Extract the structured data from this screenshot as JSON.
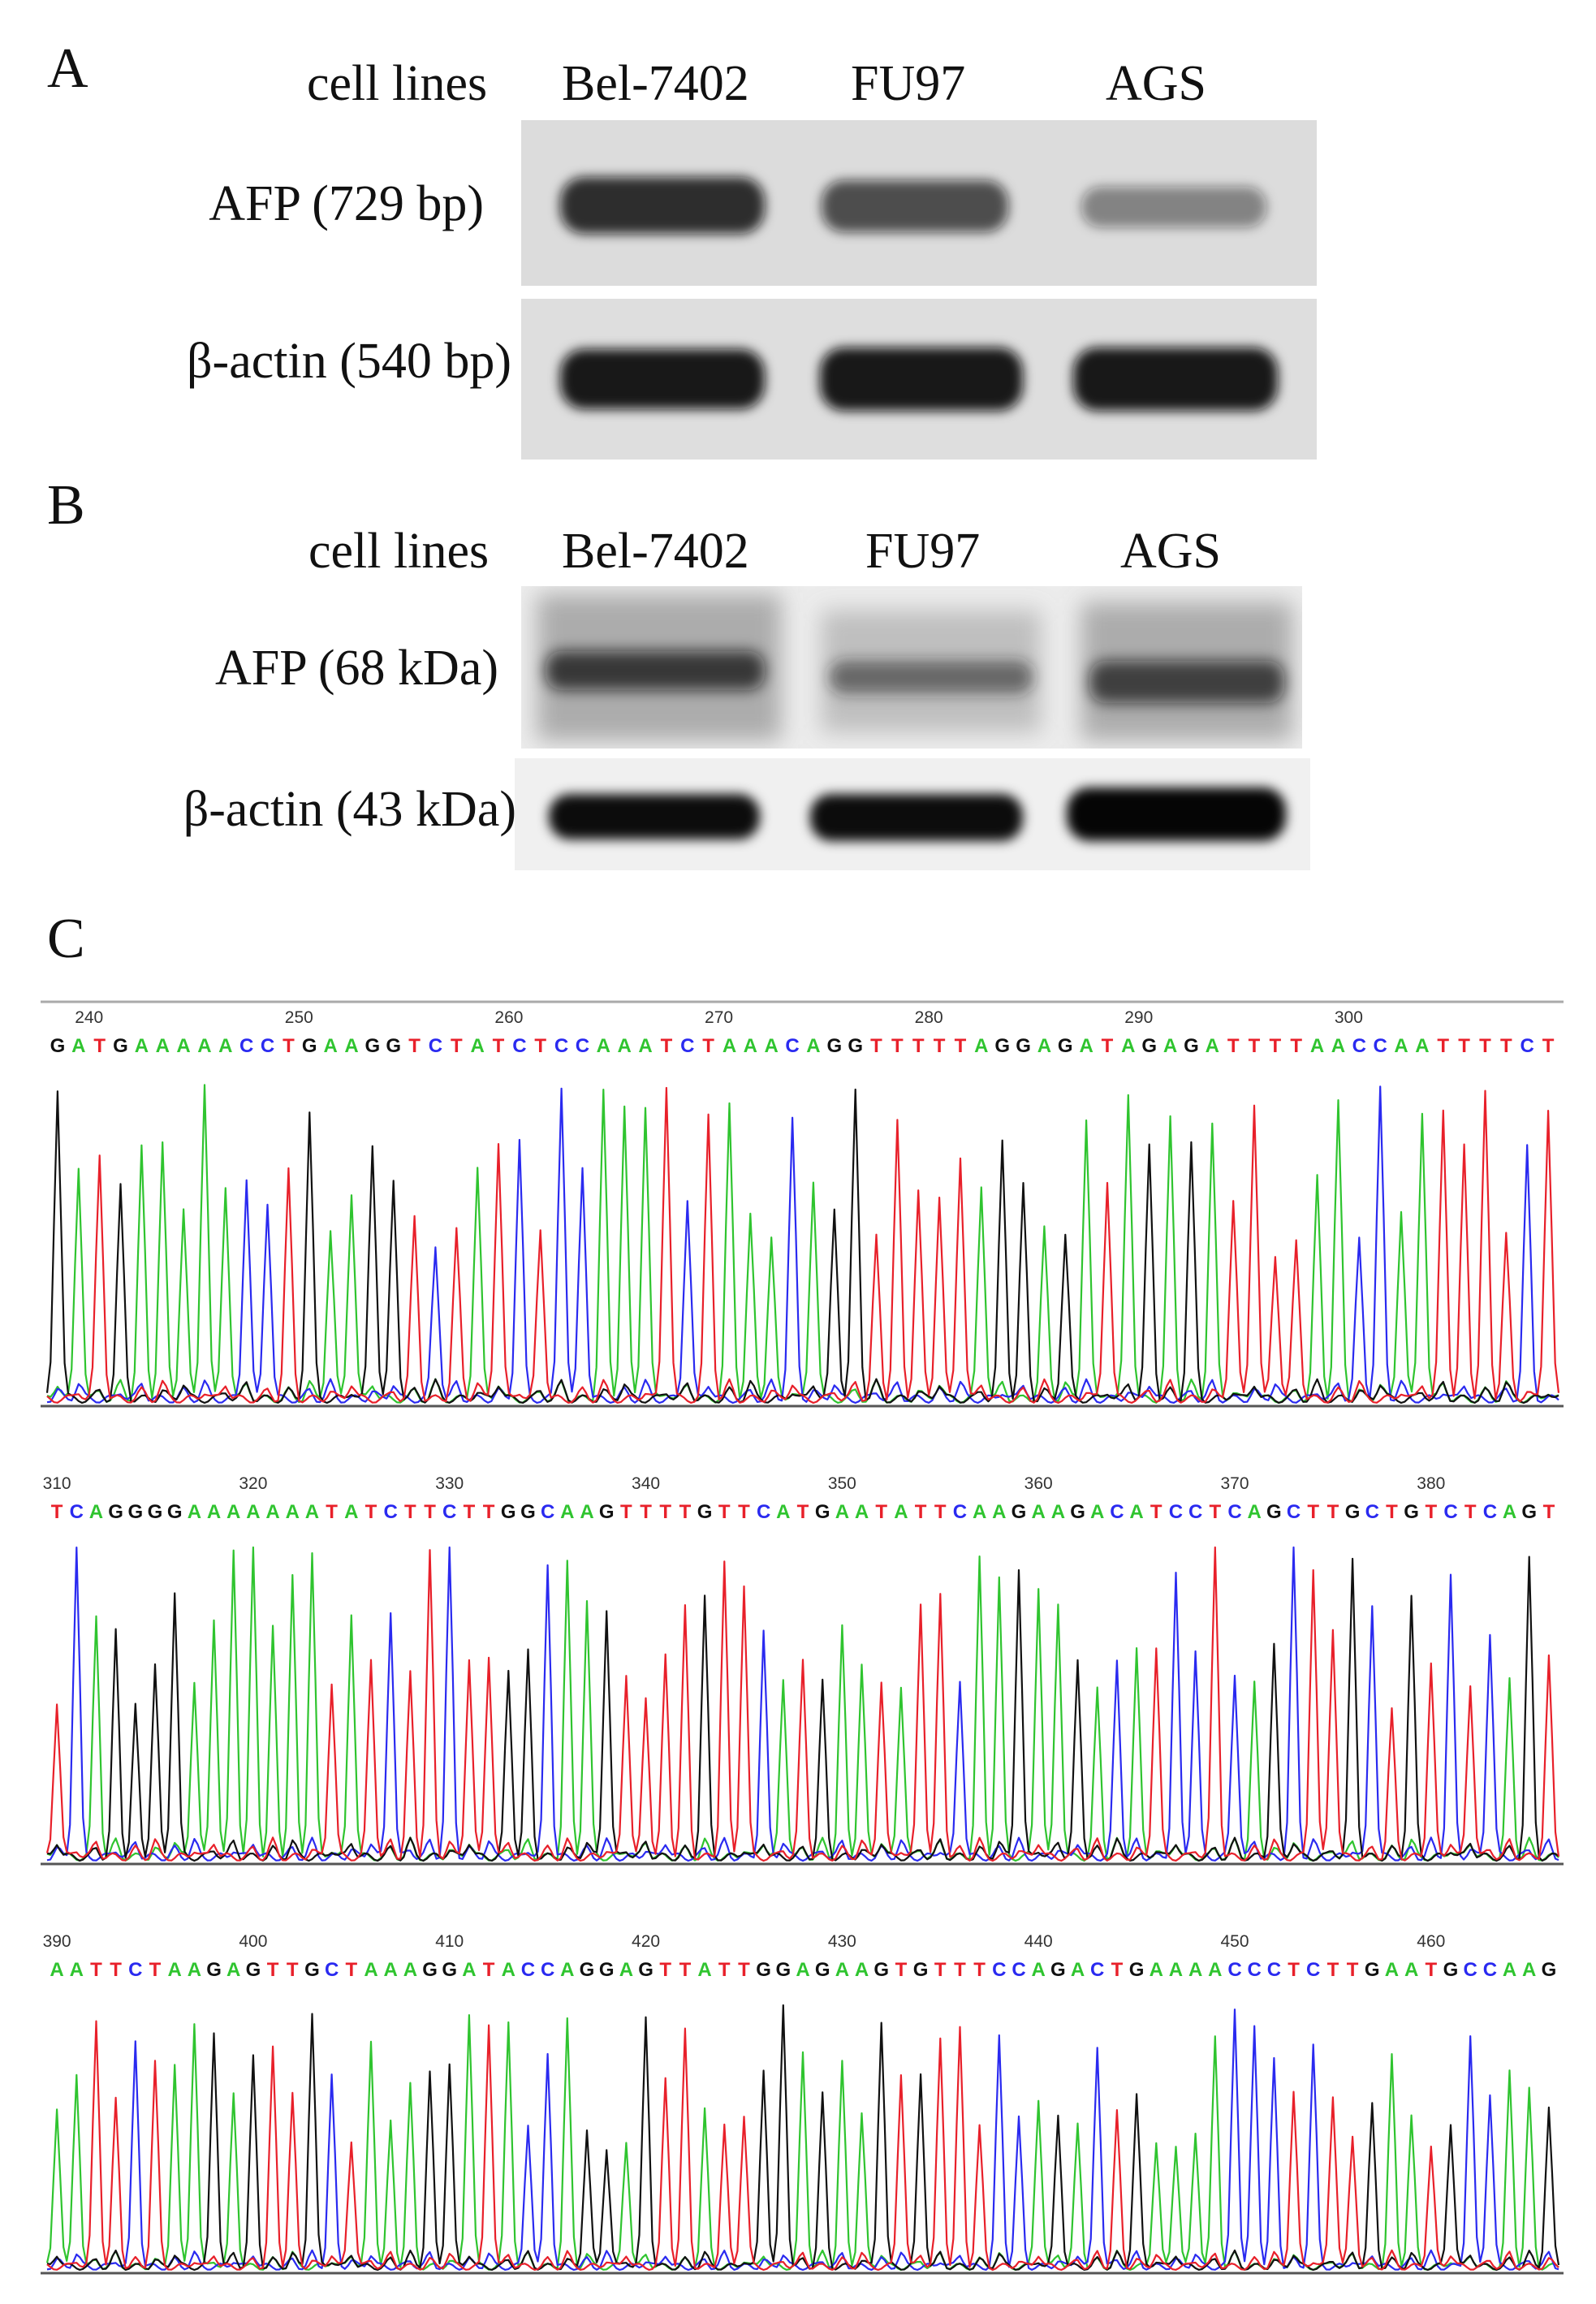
{
  "panel_a": {
    "letter": "A",
    "header": [
      "cell lines",
      "Bel-7402",
      "FU97",
      "AGS"
    ],
    "rows": [
      {
        "label": "AFP (729 bp)",
        "band_intensity": [
          0.85,
          0.7,
          0.45
        ]
      },
      {
        "label": "β-actin (540 bp)",
        "band_intensity": [
          0.95,
          0.95,
          0.95
        ]
      }
    ]
  },
  "panel_b": {
    "letter": "B",
    "header": [
      "cell lines",
      "Bel-7402",
      "FU97",
      "AGS"
    ],
    "rows": [
      {
        "label": "AFP (68 kDa)",
        "band_intensity": [
          0.75,
          0.55,
          0.7
        ]
      },
      {
        "label": "β-actin (43 kDa)",
        "band_intensity": [
          0.95,
          0.95,
          0.98
        ]
      }
    ]
  },
  "panel_c": {
    "letter": "C",
    "base_colors": {
      "A": "#2fc42f",
      "C": "#2a2af0",
      "G": "#111111",
      "T": "#e8202a"
    },
    "tracks": [
      {
        "start": 240,
        "ticks": [
          "240",
          "250",
          "260",
          "270",
          "280",
          "290",
          "300"
        ],
        "sequence": "GATGAAAAACCTGAAGGTCTATCTCCAAATCTAAACAGGTTTTTAGGAGATAGAGATTTTAACCAATTTTCT"
      },
      {
        "start": 310,
        "ticks": [
          "310",
          "320",
          "330",
          "340",
          "350",
          "360",
          "370",
          "380"
        ],
        "sequence": "TCAGGGGAAAAAAATATCTTCTTGGCAAGTTTTGTTCATGAATATTCAAGAAGACATCCTCAGCTTGCTGTCTCAGT"
      },
      {
        "start": 390,
        "ticks": [
          "390",
          "400",
          "410",
          "420",
          "430",
          "440",
          "450",
          "460"
        ],
        "sequence": "AATTCTAAGAGTTGCTAAAGGATACCAGGAGTTATTGGAGAAGTGTTTCCAGACTGAAAACCCTCTTGAATGCCAAG"
      }
    ]
  }
}
